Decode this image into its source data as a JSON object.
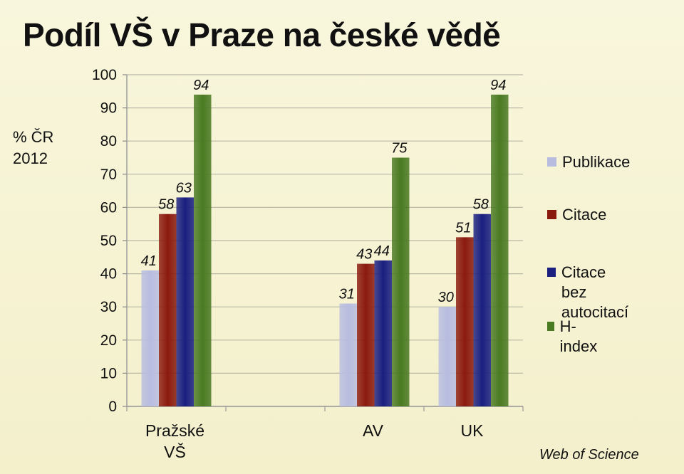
{
  "title": "Podíl VŠ v Praze na české vědě",
  "ylabel_line1": "% ČR",
  "ylabel_line2": "2012",
  "source": "Web of Science",
  "chart_data": {
    "type": "bar",
    "title": "Podíl VŠ v Praze na české vědě",
    "ylabel": "% ČR 2012",
    "xlabel": "",
    "ylim": [
      0,
      100
    ],
    "yticks": [
      0,
      10,
      20,
      30,
      40,
      50,
      60,
      70,
      80,
      90,
      100
    ],
    "grid": true,
    "legend_position": "right",
    "categories": [
      "Pražské\nVŠ",
      "",
      "AV",
      "UK"
    ],
    "series": [
      {
        "name": "Publikace",
        "color": "#b8bde0",
        "values": [
          41,
          null,
          31,
          30
        ]
      },
      {
        "name": "Citace",
        "color": "#8b1a0e",
        "values": [
          58,
          null,
          43,
          51
        ]
      },
      {
        "name": "Citace bez\nautocitací",
        "color": "#1a1f80",
        "values": [
          63,
          null,
          44,
          58
        ]
      },
      {
        "name": "H-index",
        "color": "#4a7a22",
        "values": [
          94,
          null,
          75,
          94
        ]
      }
    ]
  }
}
